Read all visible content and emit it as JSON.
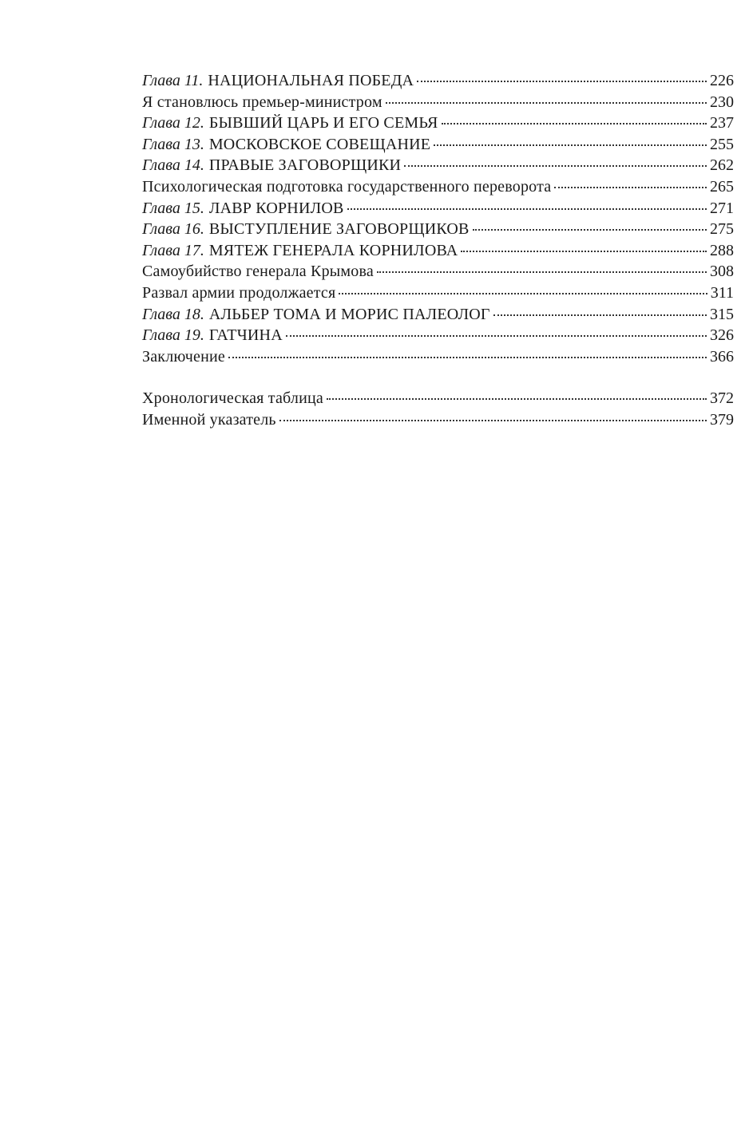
{
  "toc": {
    "entries": [
      {
        "prefix": "Глава 11.",
        "title": "НАЦИОНАЛЬНАЯ ПОБЕДА",
        "page": "226"
      },
      {
        "prefix": "",
        "title": "Я становлюсь премьер-министром",
        "page": "230"
      },
      {
        "prefix": "Глава 12.",
        "title": "БЫВШИЙ ЦАРЬ И ЕГО СЕМЬЯ",
        "page": "237"
      },
      {
        "prefix": "Глава 13.",
        "title": "МОСКОВСКОЕ СОВЕЩАНИЕ",
        "page": "255"
      },
      {
        "prefix": "Глава 14.",
        "title": "ПРАВЫЕ ЗАГОВОРЩИКИ",
        "page": "262"
      },
      {
        "prefix": "",
        "title": "Психологическая подготовка государственного переворота",
        "page": "265"
      },
      {
        "prefix": "Глава 15.",
        "title": "ЛАВР КОРНИЛОВ",
        "page": "271"
      },
      {
        "prefix": "Глава 16.",
        "title": "ВЫСТУПЛЕНИЕ ЗАГОВОРЩИКОВ",
        "page": "275"
      },
      {
        "prefix": "Глава 17.",
        "title": "МЯТЕЖ ГЕНЕРАЛА КОРНИЛОВА",
        "page": "288"
      },
      {
        "prefix": "",
        "title": "Самоубийство генерала Крымова",
        "page": "308"
      },
      {
        "prefix": "",
        "title": "Развал армии продолжается",
        "page": "311"
      },
      {
        "prefix": "Глава 18.",
        "title": "АЛЬБЕР ТОМА И МОРИС ПАЛЕОЛОГ",
        "page": "315"
      },
      {
        "prefix": "Глава 19.",
        "title": "ГАТЧИНА",
        "page": "326"
      },
      {
        "prefix": "",
        "title": "Заключение",
        "page": "366"
      },
      {
        "prefix": "",
        "title": "Хронологическая таблица",
        "page": "372"
      },
      {
        "prefix": "",
        "title": "Именной указатель",
        "page": "379"
      }
    ]
  }
}
